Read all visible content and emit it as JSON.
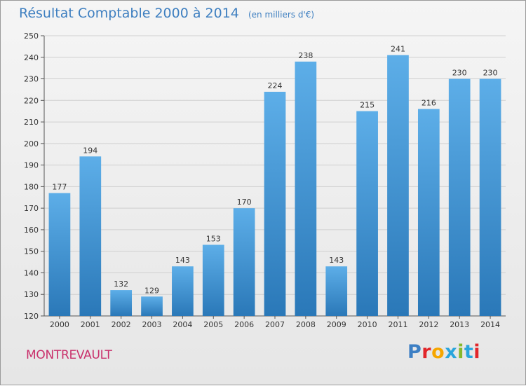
{
  "header": {
    "title": "Résultat Comptable 2000 à 2014",
    "subtitle": "(en milliers d'€)"
  },
  "footer": {
    "commune": "MONTREVAULT",
    "logo_letters": [
      "P",
      "r",
      "o",
      "x",
      "i",
      "t",
      "i"
    ],
    "logo_colors": [
      "#3d7fc4",
      "#e2262a",
      "#f6a600",
      "#2aa5dc",
      "#86b82c",
      "#2aa5dc",
      "#e2262a"
    ]
  },
  "colors": {
    "bar_top": "#5daee8",
    "bar_bottom": "#2a78b8",
    "grid": "#d0d0d0",
    "title": "#3e7fc0",
    "commune": "#c9306b"
  },
  "chart_data": {
    "type": "bar",
    "title": "Résultat Comptable 2000 à 2014",
    "subtitle": "(en milliers d'€)",
    "xlabel": "",
    "ylabel": "",
    "categories": [
      "2000",
      "2001",
      "2002",
      "2003",
      "2004",
      "2005",
      "2006",
      "2007",
      "2008",
      "2009",
      "2010",
      "2011",
      "2012",
      "2013",
      "2014"
    ],
    "values": [
      177,
      194,
      132,
      129,
      143,
      153,
      170,
      224,
      238,
      143,
      215,
      241,
      216,
      230,
      230
    ],
    "ylim": [
      120,
      250
    ],
    "yticks": [
      120,
      130,
      140,
      150,
      160,
      170,
      180,
      190,
      200,
      210,
      220,
      230,
      240,
      250
    ],
    "grid": true,
    "legend": "none"
  }
}
